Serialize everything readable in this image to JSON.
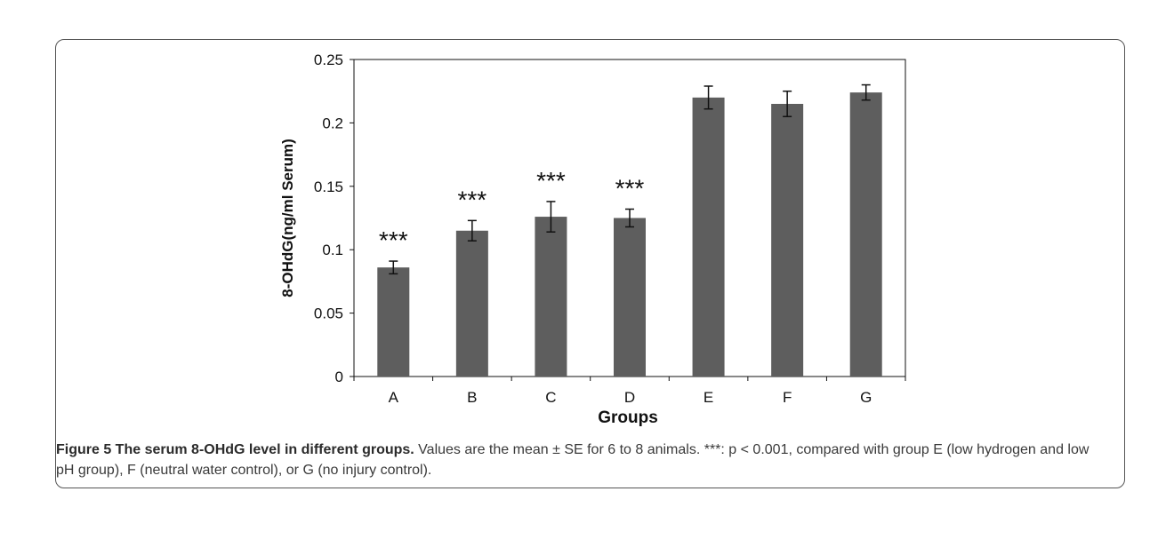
{
  "chart_data": {
    "type": "bar",
    "categories": [
      "A",
      "B",
      "C",
      "D",
      "E",
      "F",
      "G"
    ],
    "values": [
      0.086,
      0.115,
      0.126,
      0.125,
      0.22,
      0.215,
      0.224
    ],
    "errors": [
      0.005,
      0.008,
      0.012,
      0.007,
      0.009,
      0.01,
      0.006
    ],
    "annotations": [
      "***",
      "***",
      "***",
      "***",
      "",
      "",
      ""
    ],
    "xlabel": "Groups",
    "ylabel": "8-OHdG(ng/ml Serum)",
    "ylim": [
      0,
      0.25
    ],
    "yticks": [
      0,
      0.05,
      0.1,
      0.15,
      0.2,
      0.25
    ],
    "ytick_labels": [
      "0",
      "0.05",
      "0.1",
      "0.15",
      "0.2",
      "0.25"
    ],
    "grid": false,
    "bar_color": "#5e5e5e"
  },
  "caption": {
    "lead": "Figure 5 The serum 8-OHdG level in different groups.",
    "text": " Values are the mean ± SE for 6 to 8 animals. ***: p < 0.001, compared with group E (low hydrogen and low pH group), F (neutral water control), or G (no injury control)."
  }
}
